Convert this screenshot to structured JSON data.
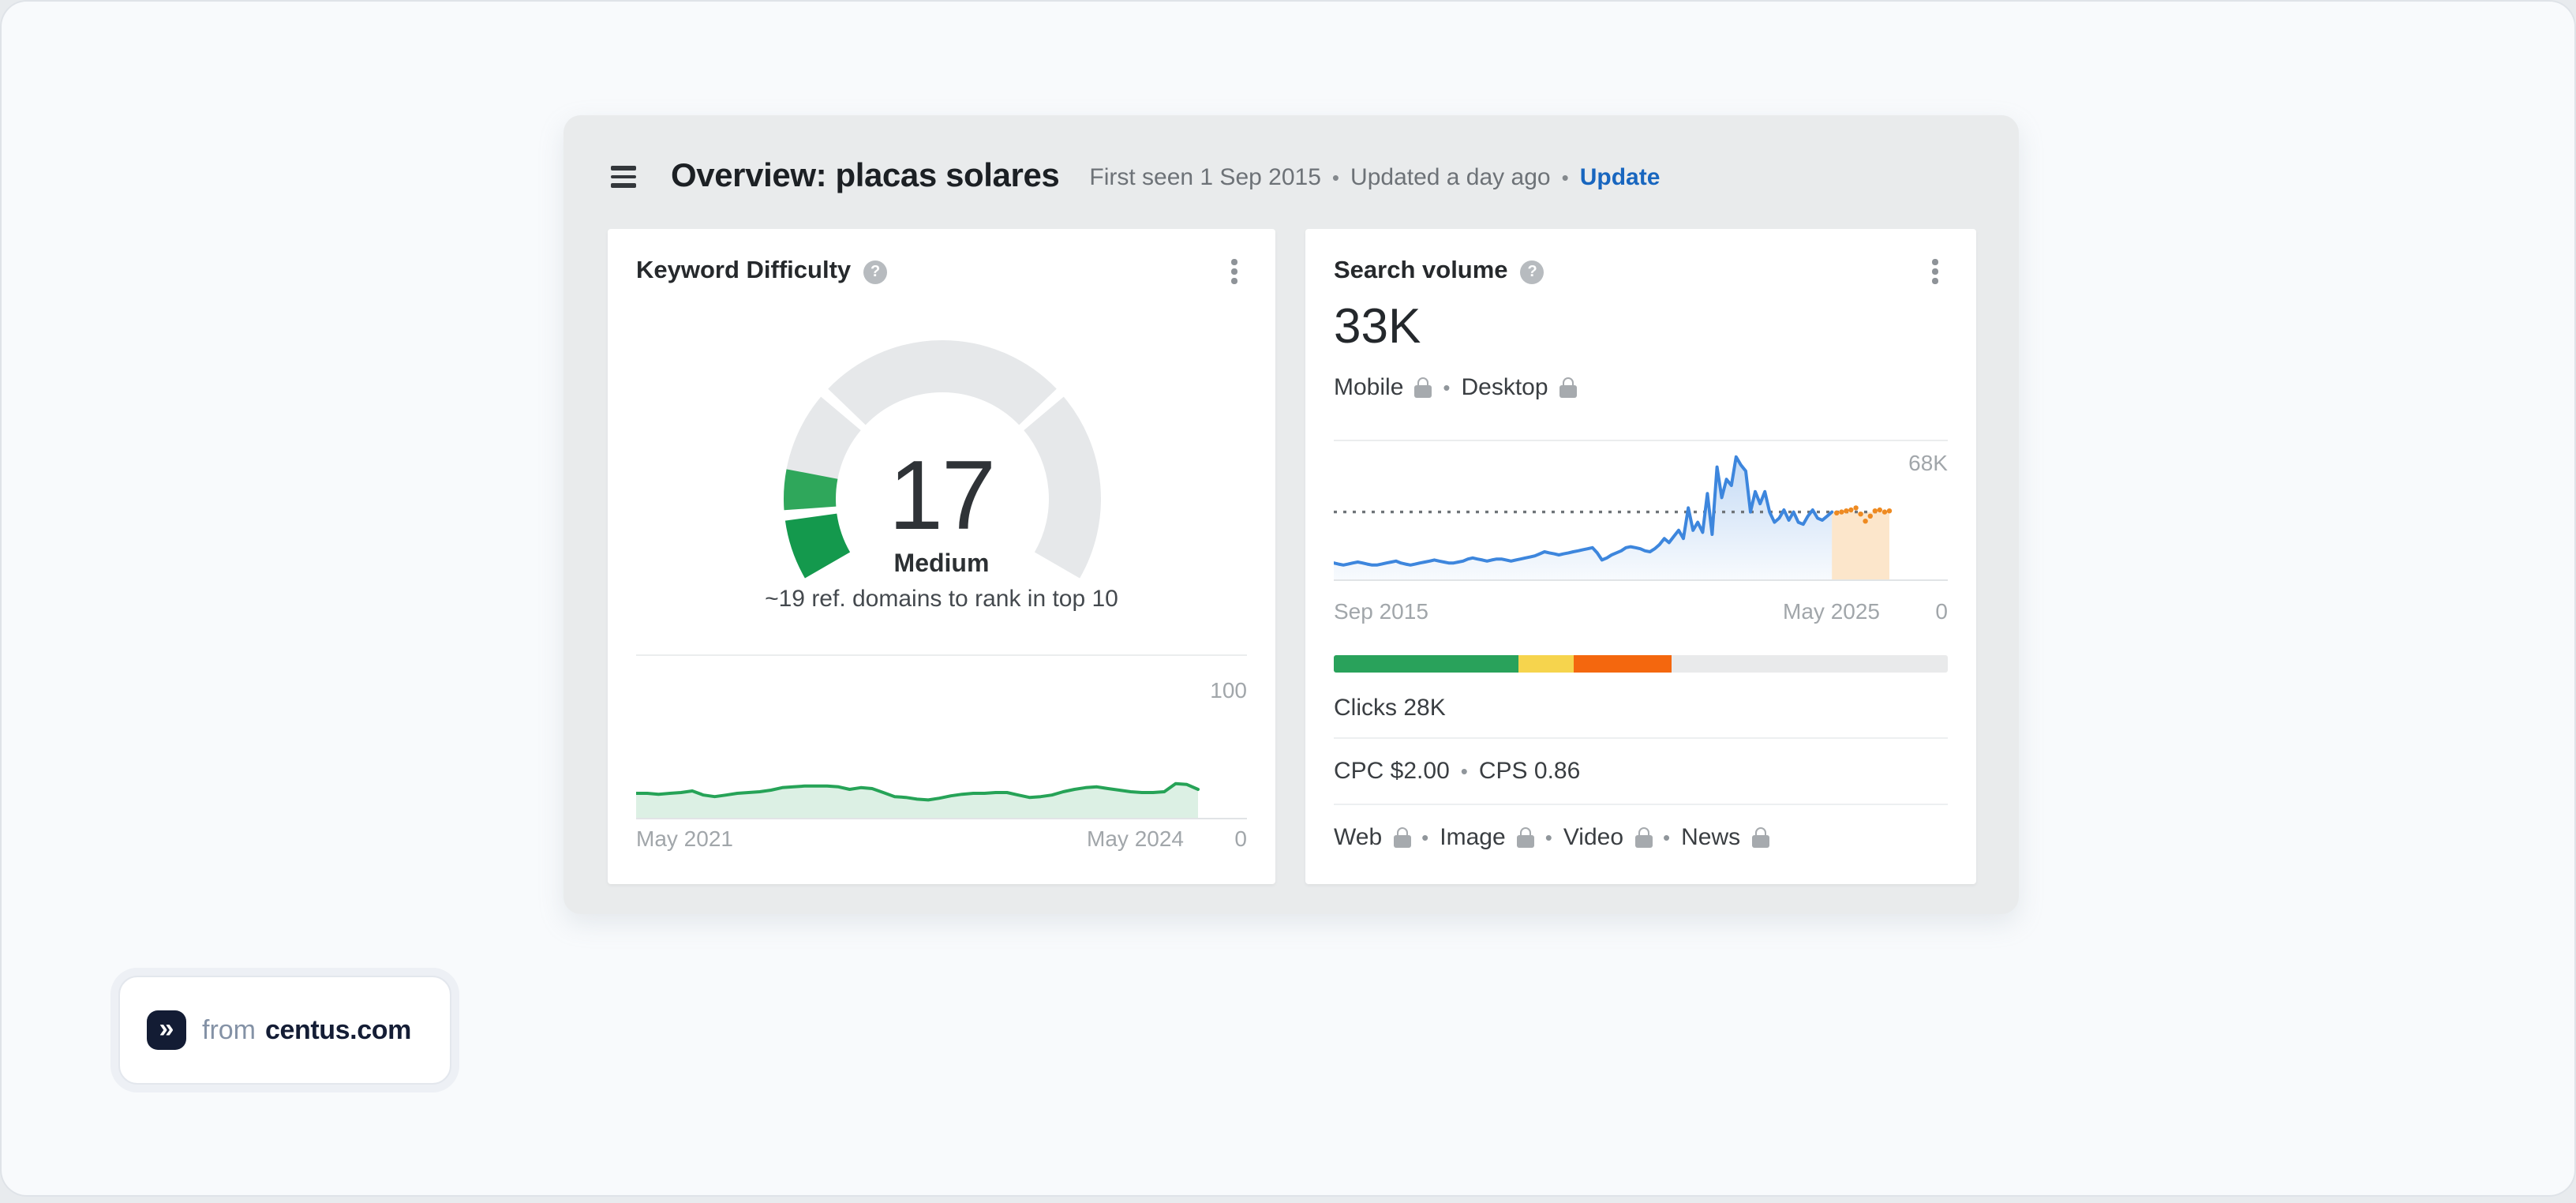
{
  "ui": {
    "bullet": "•",
    "help_glyph": "?"
  },
  "header": {
    "title": "Overview: placas solares",
    "first_seen": "First seen 1 Sep 2015",
    "updated": "Updated a day ago",
    "update_label": "Update",
    "link_color": "#1866bf"
  },
  "kd_card": {
    "title": "Keyword Difficulty",
    "score": "17",
    "level": "Medium",
    "hint": "~19 ref. domains to rank in top 10",
    "ymax_label": "100",
    "ymin_label": "0",
    "x_start": "May 2021",
    "x_end": "May 2024"
  },
  "sv_card": {
    "title": "Search volume",
    "value": "33K",
    "device_mobile": "Mobile",
    "device_desktop": "Desktop",
    "ymax_label": "68K",
    "ymin_label": "0",
    "x_start": "Sep 2015",
    "x_end": "May 2025",
    "clicks": "Clicks 28K",
    "cpc": "CPC $2.00",
    "cps": "CPS 0.86",
    "serp": [
      "Web",
      "Image",
      "Video",
      "News"
    ]
  },
  "badge": {
    "prefix": "from",
    "brand": "centus.com",
    "logo_glyph": "»"
  },
  "chart_data": [
    {
      "id": "kd_gauge",
      "type": "gauge",
      "title": "Keyword Difficulty",
      "value": 17,
      "max": 100,
      "label": "Medium",
      "segment_boundaries": [
        0,
        10,
        30,
        70,
        100
      ],
      "fill_colors": [
        "#14994d",
        "#2fa75b"
      ],
      "track_color": "#e6e8ea",
      "sweep_degrees": 240
    },
    {
      "id": "kd_history",
      "type": "area",
      "title": "Keyword Difficulty history",
      "x_start": "May 2021",
      "x_end": "May 2024",
      "ylim": [
        0,
        100
      ],
      "line_color": "#26a357",
      "fill_color": "rgba(38,163,87,0.16)",
      "values": [
        15,
        15,
        14.5,
        15,
        15.5,
        16.5,
        14,
        13,
        14,
        15,
        15.5,
        16,
        17,
        18.5,
        19,
        19.5,
        19.5,
        19.5,
        19,
        17.5,
        18.5,
        18,
        15.5,
        13,
        12.5,
        11.5,
        11,
        12,
        13.5,
        14.5,
        15,
        15,
        15.5,
        15.5,
        14,
        12.5,
        13,
        14,
        16,
        17.5,
        18.5,
        19,
        18,
        17,
        16,
        15.5,
        15.5,
        16,
        21,
        20.5,
        17.5
      ]
    },
    {
      "id": "search_volume",
      "type": "area",
      "title": "Search volume history",
      "x_start": "Sep 2015",
      "x_end": "May 2025",
      "ylim": [
        0,
        68
      ],
      "current_level": 33,
      "line_color": "#3d86dd",
      "fill_top": "rgba(61,134,221,0.30)",
      "fill_bottom": "rgba(61,134,221,0.04)",
      "dotted_color": "#6f7478",
      "forecast_color": "#ee8a21",
      "forecast_fill": "rgba(246,166,70,0.28)",
      "values": [
        8,
        7.5,
        7,
        7.5,
        8,
        8.5,
        8,
        7.5,
        7,
        7,
        7.5,
        8,
        8.5,
        9,
        8,
        7.5,
        7,
        7.5,
        8,
        8.5,
        9,
        9.5,
        9,
        8.5,
        8,
        8,
        8.5,
        9,
        10,
        10.5,
        10,
        9.5,
        9,
        9.5,
        10,
        10,
        9.5,
        9,
        9.5,
        10,
        10.5,
        11,
        11.5,
        12.5,
        13.5,
        13,
        12.5,
        12,
        12.5,
        13,
        13.5,
        14,
        14.5,
        15,
        15.5,
        13,
        9.5,
        10.5,
        12,
        13,
        14,
        15.5,
        16,
        15.5,
        15,
        14,
        13.5,
        15,
        17,
        20,
        18,
        21,
        24,
        20,
        35,
        24,
        28,
        23,
        42,
        22,
        55,
        40,
        49,
        46,
        60,
        56,
        53,
        33,
        43,
        37,
        43,
        33,
        28,
        30,
        34,
        29,
        33,
        28,
        27,
        31,
        34,
        30,
        29,
        31,
        33
      ],
      "forecast": [
        32.5,
        33,
        33.5,
        34,
        35,
        32,
        28.5,
        31,
        33.5,
        34,
        33,
        33.5
      ]
    },
    {
      "id": "clicks_breakdown",
      "type": "stacked_bar",
      "title": "Clicks breakdown",
      "segments": [
        {
          "label": "segment-1",
          "color": "#29a25b",
          "pct": 30
        },
        {
          "label": "segment-2",
          "color": "#f6d44d",
          "pct": 9
        },
        {
          "label": "segment-3",
          "color": "#f4670e",
          "pct": 16
        },
        {
          "label": "segment-4",
          "color": "#e9eaeb",
          "pct": 45
        }
      ]
    }
  ]
}
